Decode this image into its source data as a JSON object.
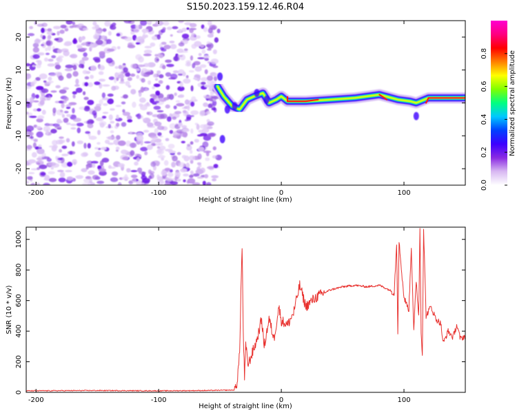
{
  "title": "S150.2023.159.12.46.R04",
  "chart_data": [
    {
      "type": "heatmap",
      "xlabel": "Height of straight line (km)",
      "ylabel": "Frequency (Hz)",
      "xlim": [
        -208,
        150
      ],
      "ylim": [
        -25,
        25
      ],
      "xticks": [
        -200,
        -100,
        0,
        100
      ],
      "yticks": [
        -20,
        -10,
        0,
        10,
        20
      ],
      "grid": false,
      "colormap": "rainbow (white → purple → blue → cyan → green → yellow → red → magenta)",
      "colorbar": {
        "label": "Normalized spectral amplitude",
        "range": [
          0.0,
          1.0
        ],
        "ticks": [
          0.0,
          0.2,
          0.4,
          0.6,
          0.8
        ],
        "tick_labels": [
          "0.0",
          "0.2",
          "0.4",
          "0.6",
          "0.8"
        ],
        "stops": [
          "#ffffff",
          "#d8b8f2",
          "#8a2be2",
          "#3d00ff",
          "#0040ff",
          "#00c8ff",
          "#00ff80",
          "#80ff00",
          "#ffff00",
          "#ff8000",
          "#ff0000",
          "#ff0080",
          "#ff00d0"
        ]
      },
      "noise_region_x": [
        -208,
        -51
      ],
      "ridge": [
        {
          "x": -52,
          "y": 5
        },
        {
          "x": -47,
          "y": 2
        },
        {
          "x": -40,
          "y": -1
        },
        {
          "x": -34,
          "y": -2
        },
        {
          "x": -28,
          "y": 1
        },
        {
          "x": -22,
          "y": 2
        },
        {
          "x": -15,
          "y": 3
        },
        {
          "x": -10,
          "y": 0
        },
        {
          "x": -4,
          "y": 1
        },
        {
          "x": 0,
          "y": 2
        },
        {
          "x": 5,
          "y": 0.5
        },
        {
          "x": 20,
          "y": 0.5
        },
        {
          "x": 40,
          "y": 1
        },
        {
          "x": 60,
          "y": 1.5
        },
        {
          "x": 80,
          "y": 2.5
        },
        {
          "x": 95,
          "y": 1
        },
        {
          "x": 105,
          "y": 0.5
        },
        {
          "x": 110,
          "y": 0
        },
        {
          "x": 120,
          "y": 1.5
        },
        {
          "x": 150,
          "y": 1.5
        }
      ]
    },
    {
      "type": "line",
      "xlabel": "Height of straight line (km)",
      "ylabel": "SNR (10 * v/v)",
      "xlim": [
        -208,
        150
      ],
      "ylim": [
        0,
        1080
      ],
      "xticks": [
        -200,
        -100,
        0,
        100
      ],
      "yticks": [
        0,
        200,
        400,
        600,
        800,
        1000
      ],
      "grid": false,
      "color": "#e8312e",
      "series": [
        {
          "points": [
            [
              -208,
              10
            ],
            [
              -150,
              12
            ],
            [
              -100,
              10
            ],
            [
              -60,
              12
            ],
            [
              -38,
              15
            ],
            [
              -36,
              70
            ],
            [
              -34,
              250
            ],
            [
              -33,
              650
            ],
            [
              -32,
              950
            ],
            [
              -31,
              400
            ],
            [
              -30,
              90
            ],
            [
              -29,
              300
            ],
            [
              -27,
              180
            ],
            [
              -24,
              250
            ],
            [
              -20,
              340
            ],
            [
              -16,
              480
            ],
            [
              -14,
              300
            ],
            [
              -10,
              480
            ],
            [
              -6,
              350
            ],
            [
              -2,
              560
            ],
            [
              0,
              470
            ],
            [
              5,
              440
            ],
            [
              10,
              520
            ],
            [
              15,
              700
            ],
            [
              20,
              560
            ],
            [
              25,
              600
            ],
            [
              30,
              630
            ],
            [
              40,
              670
            ],
            [
              50,
              690
            ],
            [
              60,
              700
            ],
            [
              70,
              690
            ],
            [
              80,
              700
            ],
            [
              88,
              670
            ],
            [
              92,
              650
            ],
            [
              94,
              980
            ],
            [
              95,
              400
            ],
            [
              96,
              980
            ],
            [
              100,
              620
            ],
            [
              104,
              540
            ],
            [
              106,
              950
            ],
            [
              108,
              400
            ],
            [
              110,
              730
            ],
            [
              112,
              500
            ],
            [
              113,
              1070
            ],
            [
              114,
              400
            ],
            [
              115,
              250
            ],
            [
              116,
              1070
            ],
            [
              118,
              500
            ],
            [
              122,
              560
            ],
            [
              126,
              480
            ],
            [
              130,
              450
            ],
            [
              132,
              320
            ],
            [
              136,
              400
            ],
            [
              140,
              360
            ],
            [
              143,
              440
            ],
            [
              146,
              350
            ],
            [
              150,
              370
            ]
          ]
        }
      ]
    }
  ]
}
